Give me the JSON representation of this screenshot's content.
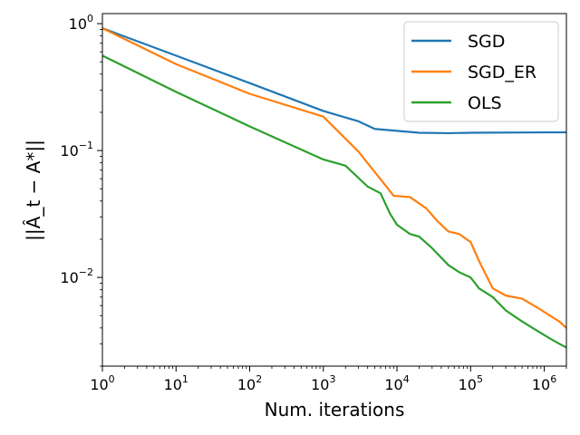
{
  "chart_data": {
    "type": "line",
    "title": "",
    "xlabel": "Num. iterations",
    "ylabel": "||Â_t − A*||",
    "xscale": "log",
    "yscale": "log",
    "xlim": [
      1,
      2000000
    ],
    "ylim": [
      0.002,
      1.2
    ],
    "x_ticks": [
      {
        "value": 1,
        "base": "10",
        "exp": "0"
      },
      {
        "value": 10,
        "base": "10",
        "exp": "1"
      },
      {
        "value": 100,
        "base": "10",
        "exp": "2"
      },
      {
        "value": 1000,
        "base": "10",
        "exp": "3"
      },
      {
        "value": 10000,
        "base": "10",
        "exp": "4"
      },
      {
        "value": 100000,
        "base": "10",
        "exp": "5"
      },
      {
        "value": 1000000,
        "base": "10",
        "exp": "6"
      }
    ],
    "y_ticks": [
      {
        "value": 1,
        "base": "10",
        "exp": "0"
      },
      {
        "value": 0.1,
        "base": "10",
        "exp": "−1"
      },
      {
        "value": 0.01,
        "base": "10",
        "exp": "−2"
      }
    ],
    "legend_position": "top-right",
    "series": [
      {
        "name": "SGD",
        "color": "#1f77b4",
        "x": [
          1,
          10,
          100,
          1000,
          3000,
          5000,
          10000,
          20000,
          50000,
          100000,
          1000000,
          2000000
        ],
        "y": [
          0.92,
          0.56,
          0.34,
          0.205,
          0.17,
          0.148,
          0.143,
          0.138,
          0.137,
          0.138,
          0.139,
          0.139
        ]
      },
      {
        "name": "SGD_ER",
        "color": "#ff7f0e",
        "x": [
          1,
          10,
          100,
          1000,
          3000,
          4500,
          7000,
          9000,
          15000,
          25000,
          35000,
          50000,
          70000,
          100000,
          130000,
          200000,
          300000,
          500000,
          800000,
          1200000,
          1600000,
          2000000
        ],
        "y": [
          0.92,
          0.48,
          0.28,
          0.185,
          0.098,
          0.073,
          0.053,
          0.044,
          0.043,
          0.035,
          0.028,
          0.023,
          0.022,
          0.019,
          0.0135,
          0.0082,
          0.0072,
          0.0068,
          0.0058,
          0.005,
          0.0045,
          0.004
        ]
      },
      {
        "name": "OLS",
        "color": "#2ca02c",
        "x": [
          1,
          10,
          100,
          1000,
          2000,
          4000,
          6000,
          8000,
          10000,
          15000,
          20000,
          30000,
          50000,
          70000,
          100000,
          130000,
          200000,
          300000,
          500000,
          800000,
          1200000,
          1600000,
          2000000
        ],
        "y": [
          0.56,
          0.29,
          0.155,
          0.085,
          0.076,
          0.052,
          0.046,
          0.032,
          0.026,
          0.022,
          0.021,
          0.017,
          0.0125,
          0.011,
          0.01,
          0.0082,
          0.007,
          0.0055,
          0.0045,
          0.0038,
          0.0033,
          0.003,
          0.0028
        ]
      }
    ]
  }
}
